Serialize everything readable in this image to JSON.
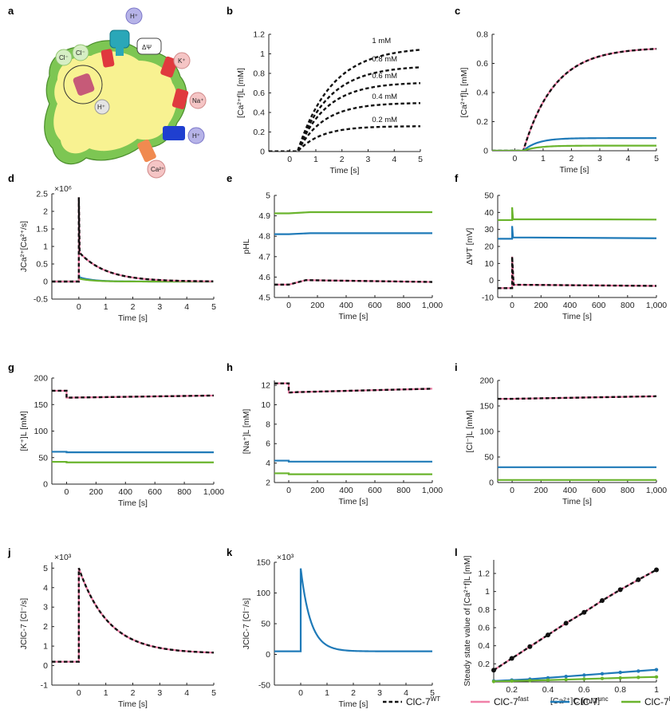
{
  "colors": {
    "wt": "#111111",
    "fast": "#f080a8",
    "unc": "#1f7ab8",
    "ko": "#6ab42d"
  },
  "legend": [
    {
      "key": "wt",
      "base": "ClC-7",
      "sup": "WT",
      "dashed": true
    },
    {
      "key": "fast",
      "base": "ClC-7",
      "sup": "fast",
      "dashed": false
    },
    {
      "key": "unc",
      "base": "ClC-7",
      "sup": "unc",
      "dashed": false
    },
    {
      "key": "ko",
      "base": "ClC-7",
      "sup": "ko",
      "dashed": false
    }
  ],
  "panel_a": {
    "letter": "a",
    "labels": {
      "h1": "H⁺",
      "delta_psi": "ΔΨ",
      "cl1": "Cl⁻",
      "cl2": "Cl⁻",
      "k": "K⁺",
      "na": "Na⁺",
      "h2": "H⁺",
      "h3": "H⁺",
      "ca": "Ca²⁺"
    }
  },
  "chart_data": [
    {
      "id": "b",
      "type": "line",
      "xlabel": "Time [s]",
      "ylabel": "[Ca²⁺f]L [mM]",
      "xlim": [
        -0.8,
        5
      ],
      "ylim": [
        0,
        1.2
      ],
      "xticks": [
        0,
        1,
        2,
        3,
        4,
        5
      ],
      "xticklabels": [
        "0",
        "1",
        "2",
        "3",
        "4",
        "5"
      ],
      "yticks": [
        0,
        0.2,
        0.4,
        0.6,
        0.8,
        1,
        1.2
      ],
      "yticklabels": [
        "0",
        "0.2",
        "0.4",
        "0.6",
        "0.8",
        "1",
        "1.2"
      ],
      "series": [
        {
          "label": "1 mM",
          "style": "wt",
          "kind": "rise",
          "t0": 0.3,
          "yend": 1.07,
          "tau": 1.3
        },
        {
          "label": "0.8 mM",
          "style": "wt",
          "kind": "rise",
          "t0": 0.3,
          "yend": 0.88,
          "tau": 1.2
        },
        {
          "label": "0.6 mM",
          "style": "wt",
          "kind": "rise",
          "t0": 0.3,
          "yend": 0.71,
          "tau": 1.1
        },
        {
          "label": "0.4 mM",
          "style": "wt",
          "kind": "rise",
          "t0": 0.3,
          "yend": 0.5,
          "tau": 1.0
        },
        {
          "label": "0.2 mM",
          "style": "wt",
          "kind": "rise",
          "t0": 0.3,
          "yend": 0.26,
          "tau": 0.9
        }
      ]
    },
    {
      "id": "c",
      "type": "line",
      "xlabel": "Time [s]",
      "ylabel": "[Ca²⁺f]L [mM]",
      "xlim": [
        -0.8,
        5
      ],
      "ylim": [
        0,
        0.8
      ],
      "xticks": [
        0,
        1,
        2,
        3,
        4,
        5
      ],
      "xticklabels": [
        "0",
        "1",
        "2",
        "3",
        "4",
        "5"
      ],
      "yticks": [
        0,
        0.2,
        0.4,
        0.6,
        0.8
      ],
      "yticklabels": [
        "0",
        "0.2",
        "0.4",
        "0.6",
        "0.8"
      ],
      "series": [
        {
          "style": "fast",
          "kind": "rise",
          "t0": 0.3,
          "yend": 0.71,
          "tau": 1.1
        },
        {
          "style": "wt",
          "kind": "rise",
          "t0": 0.3,
          "yend": 0.71,
          "tau": 1.1
        },
        {
          "style": "unc",
          "kind": "rise",
          "t0": 0.3,
          "yend": 0.087,
          "tau": 0.5
        },
        {
          "style": "ko",
          "kind": "rise",
          "t0": 0.3,
          "yend": 0.035,
          "tau": 0.5
        }
      ]
    },
    {
      "id": "d",
      "type": "line",
      "xlabel": "Time [s]",
      "ylabel": "JCa²⁺[Ca²⁺/s]",
      "exp": "×10⁶",
      "xlim": [
        -1,
        5
      ],
      "ylim": [
        -0.5,
        2.5
      ],
      "xticks": [
        0,
        1,
        2,
        3,
        4,
        5
      ],
      "xticklabels": [
        "0",
        "1",
        "2",
        "3",
        "4",
        "5"
      ],
      "yticks": [
        -0.5,
        0,
        0.5,
        1,
        1.5,
        2,
        2.5
      ],
      "yticklabels": [
        "-0.5",
        "0",
        "0.5",
        "1",
        "1.5",
        "2",
        "2.5"
      ],
      "series": [
        {
          "style": "unc",
          "kind": "spike",
          "base": 0,
          "peak": 0.22,
          "jump": 0.12,
          "tau": 0.5,
          "end": 5
        },
        {
          "style": "ko",
          "kind": "spike",
          "base": 0,
          "peak": 0.15,
          "jump": 0.08,
          "tau": 0.5,
          "end": 5
        },
        {
          "style": "fast",
          "kind": "spike",
          "base": 0,
          "peak": 2.4,
          "jump": 0.82,
          "tau": 1.0,
          "end": 5
        },
        {
          "style": "wt",
          "kind": "spike",
          "base": 0,
          "peak": 2.4,
          "jump": 0.82,
          "tau": 1.0,
          "end": 5
        }
      ]
    },
    {
      "id": "e",
      "type": "line",
      "xlabel": "Time [s]",
      "ylabel": "pHL",
      "xlim": [
        -100,
        1000
      ],
      "ylim": [
        4.5,
        5
      ],
      "xticks": [
        0,
        200,
        400,
        600,
        800,
        1000
      ],
      "xticklabels": [
        "0",
        "200",
        "400",
        "600",
        "800",
        "1,000"
      ],
      "yticks": [
        4.5,
        4.6,
        4.7,
        4.8,
        4.9,
        5
      ],
      "yticklabels": [
        "4.5",
        "4.6",
        "4.7",
        "4.8",
        "4.9",
        "5"
      ],
      "series": [
        {
          "style": "ko",
          "kind": "step",
          "points": [
            [
              -100,
              4.912
            ],
            [
              0,
              4.912
            ],
            [
              150,
              4.918
            ],
            [
              1000,
              4.918
            ]
          ]
        },
        {
          "style": "unc",
          "kind": "step",
          "points": [
            [
              -100,
              4.81
            ],
            [
              0,
              4.81
            ],
            [
              150,
              4.815
            ],
            [
              1000,
              4.815
            ]
          ]
        },
        {
          "style": "fast",
          "kind": "step",
          "points": [
            [
              -100,
              4.563
            ],
            [
              0,
              4.563
            ],
            [
              120,
              4.585
            ],
            [
              300,
              4.583
            ],
            [
              1000,
              4.576
            ]
          ]
        },
        {
          "style": "wt",
          "kind": "step",
          "points": [
            [
              -100,
              4.563
            ],
            [
              0,
              4.563
            ],
            [
              120,
              4.585
            ],
            [
              300,
              4.583
            ],
            [
              1000,
              4.576
            ]
          ]
        }
      ]
    },
    {
      "id": "f",
      "type": "line",
      "xlabel": "Time [s]",
      "ylabel": "ΔΨT [mV]",
      "xlim": [
        -100,
        1000
      ],
      "ylim": [
        -10,
        50
      ],
      "xticks": [
        0,
        200,
        400,
        600,
        800,
        1000
      ],
      "xticklabels": [
        "0",
        "200",
        "400",
        "600",
        "800",
        "1,000"
      ],
      "yticks": [
        -10,
        0,
        10,
        20,
        30,
        40,
        50
      ],
      "yticklabels": [
        "-10",
        "0",
        "10",
        "20",
        "30",
        "40",
        "50"
      ],
      "series": [
        {
          "style": "ko",
          "kind": "step",
          "points": [
            [
              -100,
              35.5
            ],
            [
              0,
              35.5
            ],
            [
              0,
              43
            ],
            [
              6,
              36
            ],
            [
              1000,
              35.8
            ]
          ]
        },
        {
          "style": "unc",
          "kind": "step",
          "points": [
            [
              -100,
              24.5
            ],
            [
              0,
              24.5
            ],
            [
              0,
              32
            ],
            [
              6,
              25.3
            ],
            [
              1000,
              24.8
            ]
          ]
        },
        {
          "style": "fast",
          "kind": "step",
          "points": [
            [
              -100,
              -4.5
            ],
            [
              0,
              -4.5
            ],
            [
              0,
              14
            ],
            [
              10,
              -2.5
            ],
            [
              1000,
              -3.2
            ]
          ]
        },
        {
          "style": "wt",
          "kind": "step",
          "points": [
            [
              -100,
              -4.5
            ],
            [
              0,
              -4.5
            ],
            [
              0,
              14
            ],
            [
              10,
              -2.5
            ],
            [
              1000,
              -3.2
            ]
          ]
        }
      ]
    },
    {
      "id": "g",
      "type": "line",
      "xlabel": "Time [s]",
      "ylabel": "[K⁺]L [mM]",
      "xlim": [
        -100,
        1000
      ],
      "ylim": [
        0,
        200
      ],
      "xticks": [
        0,
        200,
        400,
        600,
        800,
        1000
      ],
      "xticklabels": [
        "0",
        "200",
        "400",
        "600",
        "800",
        "1,000"
      ],
      "yticks": [
        0,
        50,
        100,
        150,
        200
      ],
      "yticklabels": [
        "0",
        "50",
        "100",
        "150",
        "200"
      ],
      "series": [
        {
          "style": "fast",
          "kind": "step",
          "points": [
            [
              -100,
              176
            ],
            [
              0,
              176
            ],
            [
              0,
              163
            ],
            [
              1000,
              167
            ]
          ]
        },
        {
          "style": "wt",
          "kind": "step",
          "points": [
            [
              -100,
              176
            ],
            [
              0,
              176
            ],
            [
              0,
              163
            ],
            [
              1000,
              167
            ]
          ]
        },
        {
          "style": "unc",
          "kind": "step",
          "points": [
            [
              -100,
              61
            ],
            [
              0,
              61
            ],
            [
              0,
              60
            ],
            [
              1000,
              60
            ]
          ]
        },
        {
          "style": "ko",
          "kind": "step",
          "points": [
            [
              -100,
              42
            ],
            [
              0,
              42
            ],
            [
              0,
              41
            ],
            [
              1000,
              41
            ]
          ]
        }
      ]
    },
    {
      "id": "h",
      "type": "line",
      "xlabel": "Time [s]",
      "ylabel": "[Na⁺]L [mM]",
      "xlim": [
        -100,
        1000
      ],
      "ylim": [
        2,
        12.5
      ],
      "xticks": [
        0,
        200,
        400,
        600,
        800,
        1000
      ],
      "xticklabels": [
        "0",
        "200",
        "400",
        "600",
        "800",
        "1,000"
      ],
      "yticks": [
        2,
        4,
        6,
        8,
        10,
        12
      ],
      "yticklabels": [
        "2",
        "4",
        "6",
        "8",
        "10",
        "12"
      ],
      "series": [
        {
          "style": "fast",
          "kind": "step",
          "points": [
            [
              -100,
              12.2
            ],
            [
              0,
              12.2
            ],
            [
              0,
              11.25
            ],
            [
              60,
              11.3
            ],
            [
              1000,
              11.65
            ]
          ]
        },
        {
          "style": "wt",
          "kind": "step",
          "points": [
            [
              -100,
              12.2
            ],
            [
              0,
              12.2
            ],
            [
              0,
              11.25
            ],
            [
              60,
              11.3
            ],
            [
              1000,
              11.65
            ]
          ]
        },
        {
          "style": "unc",
          "kind": "step",
          "points": [
            [
              -100,
              4.25
            ],
            [
              0,
              4.25
            ],
            [
              0,
              4.15
            ],
            [
              1000,
              4.15
            ]
          ]
        },
        {
          "style": "ko",
          "kind": "step",
          "points": [
            [
              -100,
              2.95
            ],
            [
              0,
              2.95
            ],
            [
              0,
              2.85
            ],
            [
              1000,
              2.85
            ]
          ]
        }
      ]
    },
    {
      "id": "i",
      "type": "line",
      "xlabel": "Time [s]",
      "ylabel": "[Cl⁻]L [mM]",
      "xlim": [
        -100,
        1000
      ],
      "ylim": [
        0,
        200
      ],
      "xticks": [
        0,
        200,
        400,
        600,
        800,
        1000
      ],
      "xticklabels": [
        "0",
        "200",
        "400",
        "600",
        "800",
        "1,000"
      ],
      "yticks": [
        0,
        50,
        100,
        150,
        200
      ],
      "yticklabels": [
        "0",
        "50",
        "100",
        "150",
        "200"
      ],
      "series": [
        {
          "style": "fast",
          "kind": "step",
          "points": [
            [
              -100,
              164
            ],
            [
              0,
              164
            ],
            [
              1000,
              169
            ]
          ]
        },
        {
          "style": "wt",
          "kind": "step",
          "points": [
            [
              -100,
              164
            ],
            [
              0,
              164
            ],
            [
              1000,
              169
            ]
          ]
        },
        {
          "style": "unc",
          "kind": "step",
          "points": [
            [
              -100,
              30
            ],
            [
              1000,
              30
            ]
          ]
        },
        {
          "style": "ko",
          "kind": "step",
          "points": [
            [
              -100,
              5
            ],
            [
              1000,
              5
            ]
          ]
        }
      ]
    },
    {
      "id": "j",
      "type": "line",
      "xlabel": "Time [s]",
      "ylabel": "JClC-7 [Cl⁻/s]",
      "exp": "×10³",
      "xlim": [
        -1,
        5
      ],
      "ylim": [
        -1,
        5.3
      ],
      "xticks": [
        0,
        1,
        2,
        3,
        4,
        5
      ],
      "xticklabels": [
        "0",
        "1",
        "2",
        "3",
        "4",
        "5"
      ],
      "yticks": [
        -1,
        0,
        1,
        2,
        3,
        4,
        5
      ],
      "yticklabels": [
        "-1",
        "0",
        "1",
        "2",
        "3",
        "4",
        "5"
      ],
      "series": [
        {
          "style": "fast",
          "kind": "spike",
          "base": 0.2,
          "peak": 5.0,
          "jump": 0,
          "tau": 1.1,
          "end": 5,
          "floor": 0.62
        },
        {
          "style": "wt",
          "kind": "spike",
          "base": 0.2,
          "peak": 5.0,
          "jump": 0,
          "tau": 1.1,
          "end": 5,
          "floor": 0.62
        }
      ]
    },
    {
      "id": "k",
      "type": "line",
      "xlabel": "Time [s]",
      "ylabel": "JClC-7 [Cl⁻/s]",
      "exp": "×10³",
      "xlim": [
        -1,
        5
      ],
      "ylim": [
        -50,
        150
      ],
      "xticks": [
        0,
        1,
        2,
        3,
        4,
        5
      ],
      "xticklabels": [
        "0",
        "1",
        "2",
        "3",
        "4",
        "5"
      ],
      "yticks": [
        -50,
        0,
        50,
        100,
        150
      ],
      "yticklabels": [
        "-50",
        "0",
        "50",
        "100",
        "150"
      ],
      "series": [
        {
          "style": "unc",
          "kind": "spike",
          "base": 5,
          "peak": 140,
          "jump": 0,
          "tau": 0.38,
          "end": 5,
          "floor": 5
        }
      ]
    },
    {
      "id": "l",
      "type": "line",
      "xlabel": "[Ca²⁺]C [mM]",
      "ylabel": "Steady state value of [Ca²⁺f]L [mM]",
      "xlim": [
        0.1,
        1
      ],
      "ylim": [
        0,
        1.35
      ],
      "xticks": [
        0.2,
        0.4,
        0.6,
        0.8,
        1
      ],
      "xticklabels": [
        "0.2",
        "0.4",
        "0.6",
        "0.8",
        "1"
      ],
      "yticks": [
        0.2,
        0.4,
        0.6,
        0.8,
        1,
        1.2
      ],
      "yticklabels": [
        "0.2",
        "0.4",
        "0.6",
        "0.8",
        "1",
        "1.2"
      ],
      "x": [
        0.1,
        0.2,
        0.3,
        0.4,
        0.5,
        0.6,
        0.7,
        0.8,
        0.9,
        1.0
      ],
      "series": [
        {
          "style": "fast",
          "kind": "xy",
          "markers": false,
          "values": [
            0.13,
            0.26,
            0.39,
            0.52,
            0.65,
            0.77,
            0.9,
            1.02,
            1.13,
            1.24
          ]
        },
        {
          "style": "wt",
          "kind": "xy",
          "markers": true,
          "values": [
            0.13,
            0.26,
            0.39,
            0.52,
            0.65,
            0.77,
            0.9,
            1.02,
            1.13,
            1.24
          ]
        },
        {
          "style": "unc",
          "kind": "xy",
          "markers": true,
          "values": [
            0.01,
            0.02,
            0.03,
            0.045,
            0.06,
            0.075,
            0.09,
            0.105,
            0.12,
            0.135
          ]
        },
        {
          "style": "ko",
          "kind": "xy",
          "markers": true,
          "values": [
            0.005,
            0.01,
            0.015,
            0.02,
            0.026,
            0.032,
            0.038,
            0.044,
            0.05,
            0.055
          ]
        }
      ]
    }
  ]
}
